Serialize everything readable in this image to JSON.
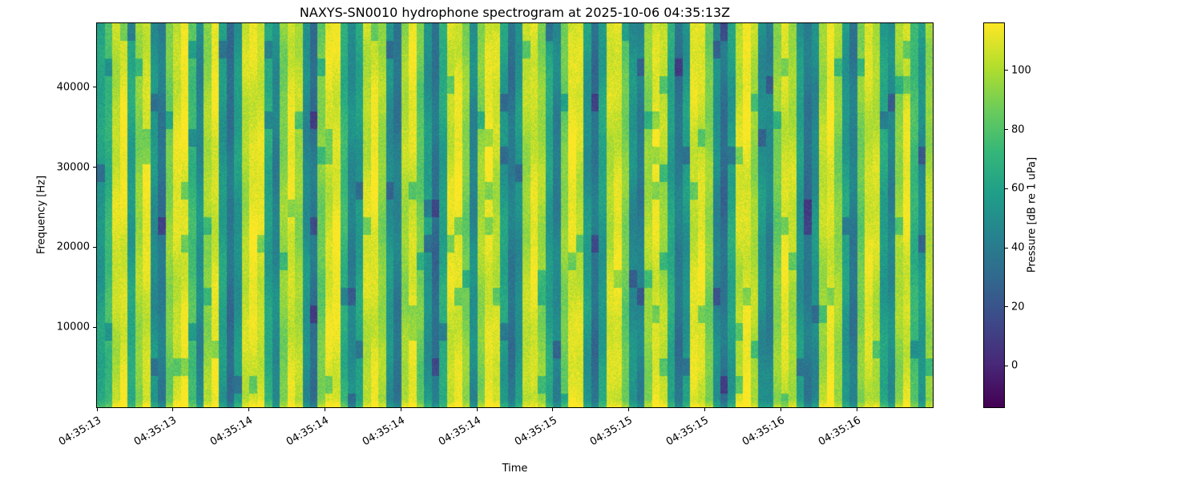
{
  "figure": {
    "title": "NAXYS-SN0010 hydrophone spectrogram at 2025-10-06 04:35:13Z",
    "xlabel": "Time",
    "ylabel": "Frequency [Hz]"
  },
  "chart_data": {
    "type": "heatmap",
    "title": "NAXYS-SN0010 hydrophone spectrogram at 2025-10-06 04:35:13Z",
    "xlabel": "Time",
    "ylabel": "Frequency [Hz]",
    "x_tick_labels": [
      "04:35:13",
      "04:35:13",
      "04:35:14",
      "04:35:14",
      "04:35:14",
      "04:35:14",
      "04:35:15",
      "04:35:15",
      "04:35:15",
      "04:35:16",
      "04:35:16"
    ],
    "y_ticks": [
      10000,
      20000,
      30000,
      40000
    ],
    "y_range_hz": [
      0,
      48000
    ],
    "grid": false,
    "legend": "none",
    "colorbar": {
      "label": "Pressure [dB re 1 uPa]",
      "ticks": [
        0,
        20,
        40,
        60,
        80,
        100
      ],
      "vmin": -14,
      "vmax": 116,
      "colormap": "viridis"
    },
    "colormap_anchors": [
      "#440154",
      "#482878",
      "#3e4989",
      "#31688e",
      "#26828e",
      "#1f9e89",
      "#35b779",
      "#6dcd59",
      "#b4de2c",
      "#fde725"
    ],
    "column_levels_db": [
      58,
      72,
      105,
      112,
      60,
      95,
      110,
      52,
      38,
      90,
      108,
      112,
      75,
      48,
      96,
      110,
      58,
      35,
      55,
      102,
      112,
      108,
      62,
      45,
      92,
      110,
      98,
      50,
      36,
      88,
      108,
      112,
      70,
      46,
      58,
      105,
      112,
      95,
      52,
      40,
      98,
      110,
      86,
      55,
      34,
      62,
      108,
      112,
      90,
      48,
      95,
      112,
      104,
      58,
      38,
      52,
      100,
      110,
      96,
      60,
      44,
      90,
      112,
      106,
      54,
      36,
      58,
      104,
      110,
      88,
      50,
      42,
      96,
      112,
      100,
      62,
      38,
      55,
      108,
      110,
      92,
      48,
      34,
      60,
      105,
      112,
      98,
      52,
      44,
      90,
      110,
      102,
      56,
      36,
      50,
      100,
      112,
      94,
      58,
      40,
      88,
      108,
      104,
      60,
      46,
      96,
      110,
      72,
      52,
      98
    ]
  }
}
